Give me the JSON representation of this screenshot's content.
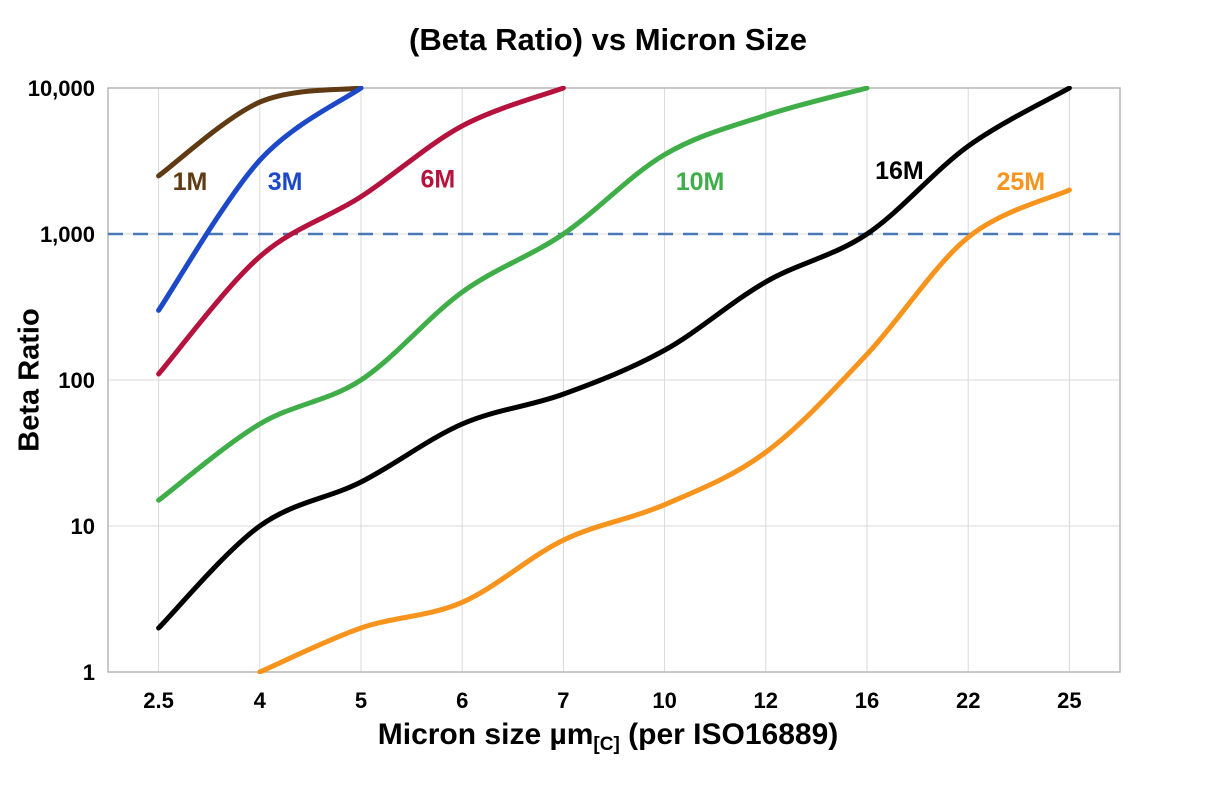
{
  "page": {
    "background": "#ffffff"
  },
  "chart_data": {
    "type": "line",
    "title": "(Beta Ratio) vs Micron Size",
    "ylabel": "Beta Ratio",
    "xlabel": {
      "pre": "Micron size µm",
      "sub": "[C]",
      "post": " (per ISO16889)"
    },
    "x_categories": [
      "2.5",
      "4",
      "5",
      "6",
      "7",
      "10",
      "12",
      "16",
      "22",
      "25"
    ],
    "x_axis_type": "category",
    "y_scale": "log",
    "ylim": [
      1,
      10000
    ],
    "y_ticks": [
      {
        "value": 10000,
        "label": "10,000"
      },
      {
        "value": 1000,
        "label": "1,000"
      },
      {
        "value": 100,
        "label": "100"
      },
      {
        "value": 10,
        "label": "10"
      },
      {
        "value": 1,
        "label": "1"
      }
    ],
    "grid": {
      "vertical": true,
      "horizontal": true,
      "color": "#d9d9d9",
      "border_color": "#b7b7b7"
    },
    "reference_line": {
      "value": 1000,
      "style": "dashed",
      "color": "#4a7ab5"
    },
    "legend_position": "inline-labels",
    "series": [
      {
        "name": "1M",
        "color": "#5f3a12",
        "values": [
          2500,
          8000,
          10000,
          null,
          null,
          null,
          null,
          null,
          null,
          null
        ],
        "label_at": {
          "x": 0.31,
          "value": 2300
        }
      },
      {
        "name": "3M",
        "color": "#1c49c8",
        "values": [
          300,
          3200,
          10000,
          null,
          null,
          null,
          null,
          null,
          null,
          null
        ],
        "label_at": {
          "x": 1.25,
          "value": 2300
        }
      },
      {
        "name": "6M",
        "color": "#b5123e",
        "values": [
          110,
          700,
          1800,
          5500,
          10000,
          null,
          null,
          null,
          null,
          null
        ],
        "label_at": {
          "x": 2.76,
          "value": 2400
        }
      },
      {
        "name": "10M",
        "color": "#3fae49",
        "values": [
          15,
          50,
          100,
          400,
          1000,
          3500,
          6500,
          10000,
          null,
          null
        ],
        "label_at": {
          "x": 5.35,
          "value": 2300
        }
      },
      {
        "name": "16M",
        "color": "#000000",
        "values": [
          2,
          10,
          20,
          50,
          80,
          160,
          470,
          1000,
          4000,
          10000
        ],
        "label_at": {
          "x": 7.32,
          "value": 2750
        }
      },
      {
        "name": "25M",
        "color": "#f7941d",
        "values": [
          null,
          1,
          2,
          3,
          8,
          14,
          32,
          150,
          950,
          2000
        ],
        "label_at": {
          "x": 8.52,
          "value": 2300
        }
      }
    ]
  }
}
